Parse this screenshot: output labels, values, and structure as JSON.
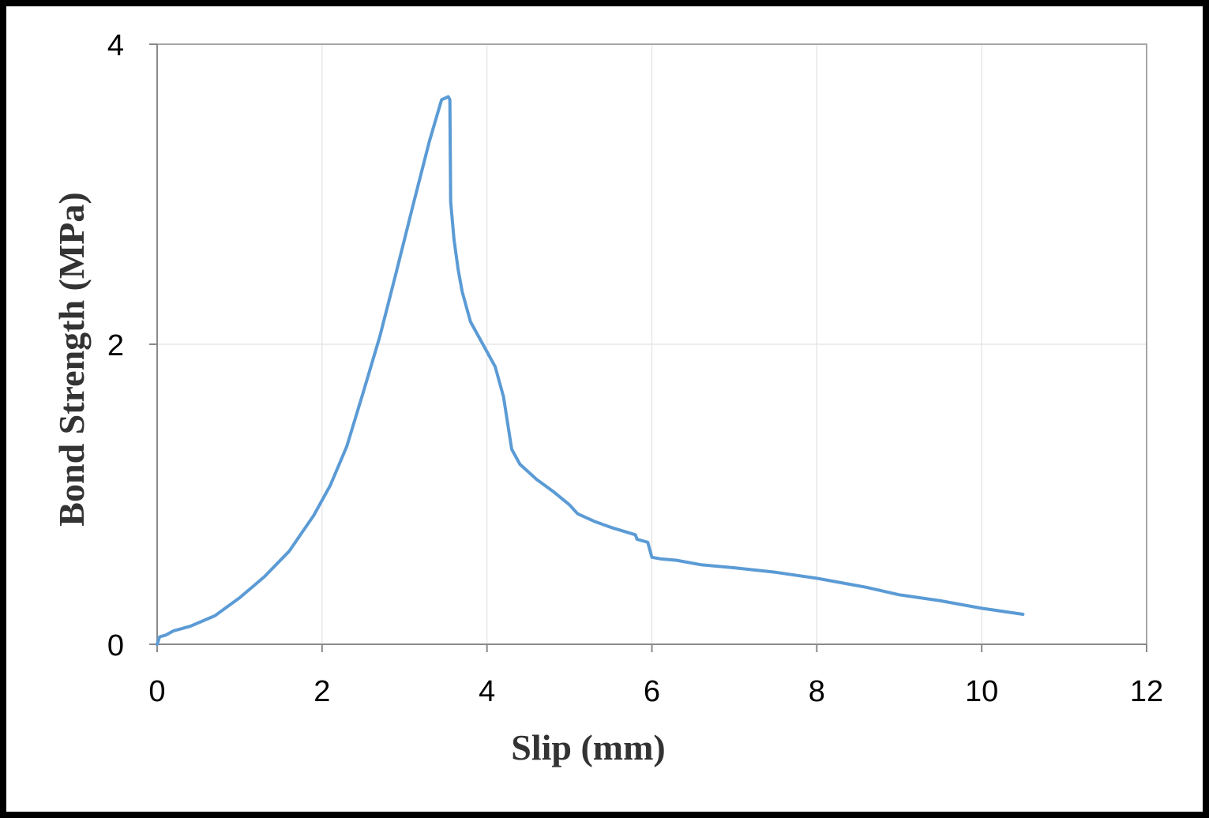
{
  "chart_data": {
    "type": "line",
    "xlabel": "Slip (mm)",
    "ylabel": "Bond Strength (MPa)",
    "xlim": [
      0,
      12
    ],
    "ylim": [
      0,
      4
    ],
    "xticks": [
      0,
      2,
      4,
      6,
      8,
      10,
      12
    ],
    "yticks": [
      0,
      2,
      4
    ],
    "xtick_labels": [
      "0",
      "2",
      "4",
      "6",
      "8",
      "10",
      "12"
    ],
    "ytick_labels": [
      "0",
      "2",
      "4"
    ],
    "grid": true,
    "legend": "none",
    "series": [
      {
        "color": "#5b9bd5",
        "x": [
          0,
          0.03,
          0.1,
          0.2,
          0.4,
          0.7,
          1.0,
          1.3,
          1.6,
          1.9,
          2.1,
          2.3,
          2.5,
          2.7,
          2.9,
          3.1,
          3.3,
          3.45,
          3.53,
          3.55,
          3.56,
          3.6,
          3.65,
          3.7,
          3.8,
          4.0,
          4.1,
          4.2,
          4.3,
          4.4,
          4.5,
          4.6,
          4.8,
          5.0,
          5.1,
          5.3,
          5.5,
          5.8,
          5.82,
          5.95,
          5.98,
          6.0,
          6.1,
          6.3,
          6.6,
          7.0,
          7.5,
          8.0,
          8.4,
          8.6,
          9.0,
          9.5,
          10.0,
          10.5
        ],
        "y": [
          0.0,
          0.05,
          0.06,
          0.09,
          0.12,
          0.19,
          0.31,
          0.45,
          0.62,
          0.86,
          1.06,
          1.32,
          1.68,
          2.05,
          2.48,
          2.92,
          3.35,
          3.63,
          3.65,
          3.63,
          2.95,
          2.7,
          2.5,
          2.35,
          2.15,
          1.95,
          1.85,
          1.65,
          1.3,
          1.2,
          1.15,
          1.1,
          1.02,
          0.93,
          0.87,
          0.82,
          0.78,
          0.73,
          0.7,
          0.68,
          0.62,
          0.58,
          0.57,
          0.56,
          0.53,
          0.51,
          0.48,
          0.44,
          0.4,
          0.38,
          0.33,
          0.29,
          0.24,
          0.2
        ]
      }
    ]
  }
}
